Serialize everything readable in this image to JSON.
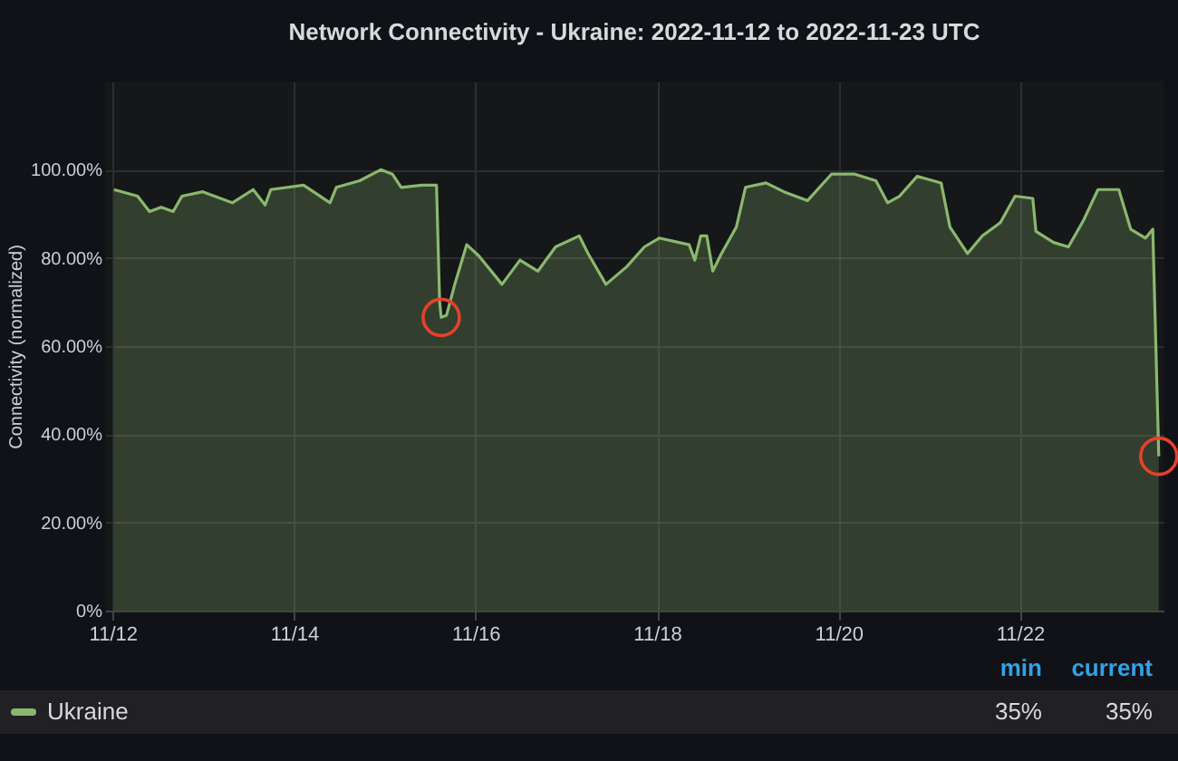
{
  "chart_data": {
    "type": "area",
    "title": "Network Connectivity - Ukraine: 2022-11-12 to 2022-11-23 UTC",
    "ylabel": "Connectivity (normalized)",
    "x": [
      "2022-11-12T00:20",
      "2022-11-12T06:35",
      "2022-11-12T09:45",
      "2022-11-12T12:50",
      "2022-11-12T16:00",
      "2022-11-12T18:20",
      "2022-11-12T23:50",
      "2022-11-13T07:40",
      "2022-11-13T13:10",
      "2022-11-13T16:20",
      "2022-11-13T17:50",
      "2022-11-14T02:30",
      "2022-11-14T09:30",
      "2022-11-14T11:10",
      "2022-11-14T17:20",
      "2022-11-14T22:55",
      "2022-11-15T02:00",
      "2022-11-15T04:20",
      "2022-11-15T09:50",
      "2022-11-15T13:40",
      "2022-11-15T14:30",
      "2022-11-15T14:55",
      "2022-11-15T16:20",
      "2022-11-15T18:30",
      "2022-11-15T21:40",
      "2022-11-16T00:50",
      "2022-11-16T07:00",
      "2022-11-16T11:45",
      "2022-11-16T16:30",
      "2022-11-16T21:10",
      "2022-11-17T03:25",
      "2022-11-17T05:45",
      "2022-11-17T10:30",
      "2022-11-17T16:00",
      "2022-11-17T20:40",
      "2022-11-18T00:35",
      "2022-11-18T08:30",
      "2022-11-18T10:00",
      "2022-11-18T11:35",
      "2022-11-18T13:10",
      "2022-11-18T14:45",
      "2022-11-18T17:05",
      "2022-11-18T21:00",
      "2022-11-18T23:25",
      "2022-11-19T04:50",
      "2022-11-19T09:35",
      "2022-11-19T15:50",
      "2022-11-19T22:10",
      "2022-11-20T04:20",
      "2022-11-20T09:55",
      "2022-11-20T13:00",
      "2022-11-20T16:10",
      "2022-11-20T20:50",
      "2022-11-21T03:10",
      "2022-11-21T05:30",
      "2022-11-21T10:10",
      "2022-11-21T14:05",
      "2022-11-21T18:50",
      "2022-11-21T22:45",
      "2022-11-22T03:25",
      "2022-11-22T04:15",
      "2022-11-22T08:55",
      "2022-11-22T12:50",
      "2022-11-22T16:50",
      "2022-11-22T20:40",
      "2022-11-23T02:10",
      "2022-11-23T05:20",
      "2022-11-23T09:15",
      "2022-11-23T11:10",
      "2022-11-23T12:45"
    ],
    "series": [
      {
        "name": "Ukraine",
        "color": "#8ab86e",
        "values": [
          95.5,
          94,
          90.5,
          91.5,
          90.5,
          94,
          95,
          92.5,
          95.5,
          92,
          95.5,
          96.5,
          92.5,
          96,
          97.5,
          100,
          99,
          96,
          96.5,
          96.5,
          70,
          66.5,
          67,
          74,
          83,
          80.5,
          74,
          79.5,
          77,
          82.5,
          85,
          81,
          74,
          78,
          82.5,
          84.5,
          83,
          79.5,
          85,
          85,
          77,
          81,
          87,
          96,
          97,
          95,
          93,
          99,
          99,
          97.5,
          92.5,
          94,
          98.5,
          97,
          87,
          81,
          85,
          88,
          94,
          93.5,
          86,
          83.5,
          82.5,
          88.5,
          95.5,
          95.5,
          86.5,
          84.5,
          86.5,
          35
        ]
      }
    ],
    "xlim": [
      "2022-11-11T22:00",
      "2022-11-23T14:00"
    ],
    "xticks": [
      {
        "value": "2022-11-12",
        "label": "11/12"
      },
      {
        "value": "2022-11-14",
        "label": "11/14"
      },
      {
        "value": "2022-11-16",
        "label": "11/16"
      },
      {
        "value": "2022-11-18",
        "label": "11/18"
      },
      {
        "value": "2022-11-20",
        "label": "11/20"
      },
      {
        "value": "2022-11-22",
        "label": "11/22"
      }
    ],
    "ylim": [
      0,
      120
    ],
    "yticks": [
      {
        "value": 0,
        "label": "0%"
      },
      {
        "value": 20,
        "label": "20.00%"
      },
      {
        "value": 40,
        "label": "40.00%"
      },
      {
        "value": 60,
        "label": "60.00%"
      },
      {
        "value": 80,
        "label": "80.00%"
      },
      {
        "value": 100,
        "label": "100.00%"
      }
    ],
    "grid": true,
    "legend": "bottom",
    "marker": "none",
    "line_style": "solid",
    "annotations": [
      "min",
      "current",
      "35%",
      "35%"
    ]
  }
}
